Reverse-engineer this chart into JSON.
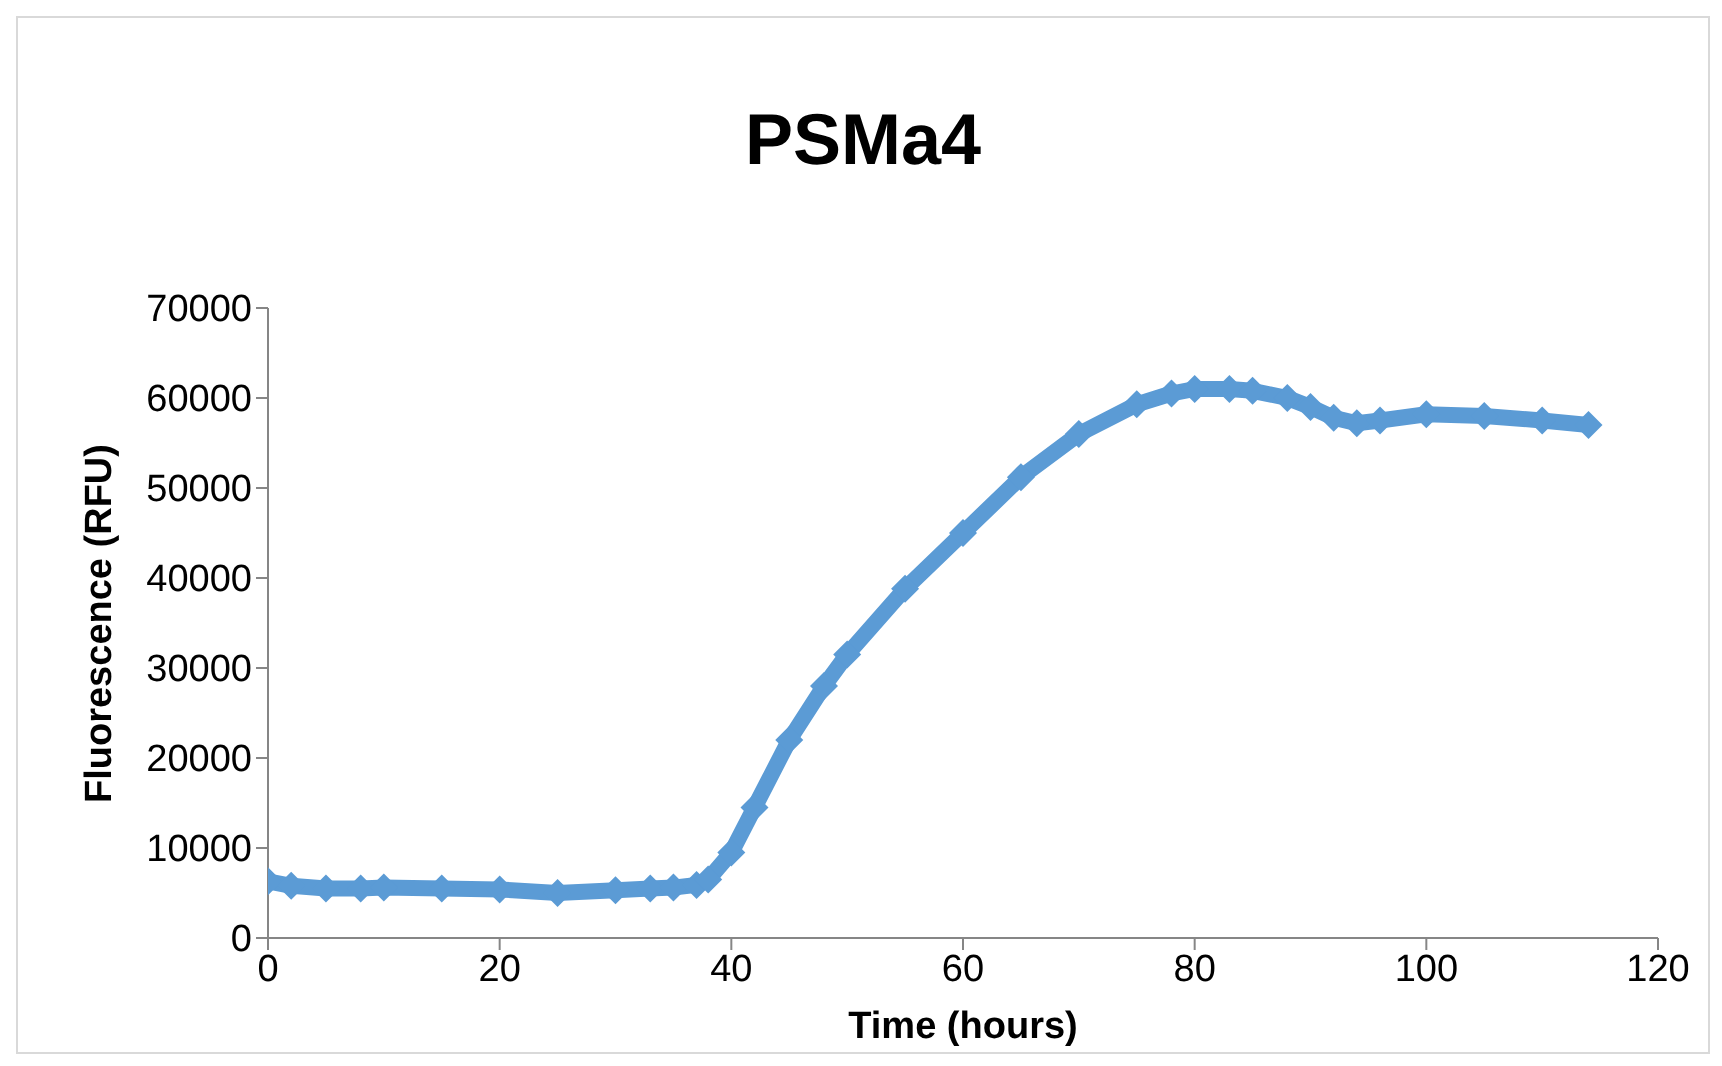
{
  "chart_data": {
    "type": "line",
    "title": "PSMa4",
    "xlabel": "Time (hours)",
    "ylabel": "Fluorescence (RFU)",
    "x": [
      0,
      2,
      5,
      8,
      10,
      15,
      20,
      25,
      30,
      33,
      35,
      37,
      38,
      40,
      42,
      45,
      48,
      50,
      55,
      60,
      65,
      70,
      75,
      78,
      80,
      83,
      85,
      88,
      90,
      92,
      94,
      96,
      100,
      105,
      110,
      114
    ],
    "series": [
      {
        "color": "#5b9bd5",
        "values": [
          6300,
          5800,
          5500,
          5500,
          5600,
          5500,
          5400,
          5000,
          5300,
          5500,
          5600,
          5900,
          6500,
          9500,
          14500,
          22000,
          28000,
          31500,
          38800,
          45000,
          51200,
          56000,
          59300,
          60500,
          61000,
          61000,
          60800,
          60000,
          59000,
          57800,
          57200,
          57500,
          58200,
          58000,
          57500,
          57000
        ]
      }
    ],
    "xlim": [
      0,
      120
    ],
    "xticks": [
      0,
      20,
      40,
      60,
      80,
      100,
      120
    ],
    "ylim": [
      0,
      70000
    ],
    "yticks": [
      0,
      10000,
      20000,
      30000,
      40000,
      50000,
      60000,
      70000
    ],
    "grid": false,
    "legend": false,
    "marker": "diamond"
  }
}
